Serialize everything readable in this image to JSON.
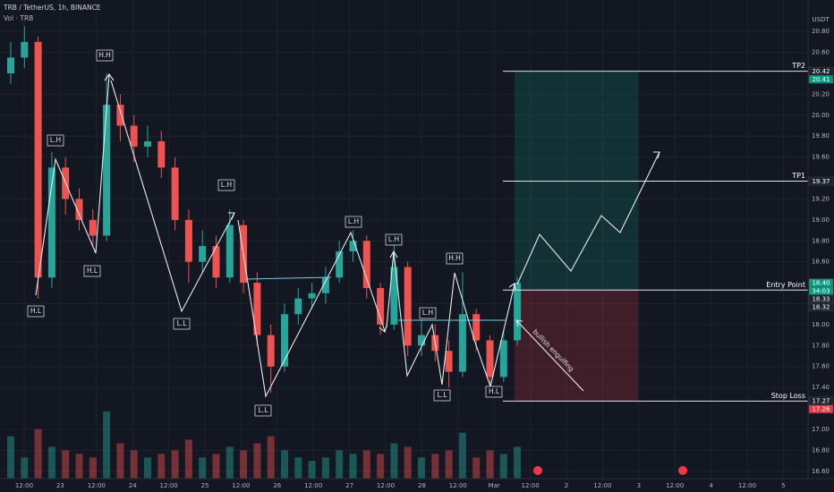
{
  "chart_data": {
    "type": "candlestick",
    "title": "TRB / TetherUS, 1h, BINANCE",
    "subtitle": "Vol · TRB",
    "y_unit": "USDT",
    "ylim": [
      16.53,
      21.1
    ],
    "yticks": [
      {
        "value": 20.8,
        "label": "20.80"
      },
      {
        "value": 20.6,
        "label": "20.60"
      },
      {
        "value": 20.2,
        "label": "20.20"
      },
      {
        "value": 20.0,
        "label": "20.00"
      },
      {
        "value": 19.8,
        "label": "19.80"
      },
      {
        "value": 19.6,
        "label": "19.60"
      },
      {
        "value": 19.2,
        "label": "19.20"
      },
      {
        "value": 19.0,
        "label": "19.00"
      },
      {
        "value": 18.8,
        "label": "18.80"
      },
      {
        "value": 18.6,
        "label": "18.60"
      },
      {
        "value": 18.2,
        "label": "18.20"
      },
      {
        "value": 18.0,
        "label": "18.00"
      },
      {
        "value": 17.8,
        "label": "17.80"
      },
      {
        "value": 17.6,
        "label": "17.60"
      },
      {
        "value": 17.4,
        "label": "17.40"
      },
      {
        "value": 17.0,
        "label": "17.00"
      },
      {
        "value": 16.8,
        "label": "16.80"
      },
      {
        "value": 16.6,
        "label": "16.60"
      }
    ],
    "xticks": [
      "12:00",
      "23",
      "12:00",
      "24",
      "12:00",
      "25",
      "12:00",
      "26",
      "12:00",
      "27",
      "12:00",
      "28",
      "12:00",
      "Mar",
      "12:00",
      "2",
      "12:00",
      "3",
      "12:00",
      "4",
      "12:00",
      "5"
    ],
    "grid": true,
    "up_color": "#26a69a",
    "down_color": "#ef5350",
    "open": [
      20.4,
      20.55,
      20.7,
      18.45,
      19.5,
      19.2,
      19.0,
      18.85,
      20.1,
      19.9,
      19.7,
      19.75,
      19.5,
      19.0,
      18.6,
      18.75,
      18.45,
      18.95,
      18.4,
      17.9,
      17.6,
      18.1,
      18.25,
      18.3,
      18.45,
      18.7,
      18.8,
      18.35,
      18.0,
      18.55,
      17.8,
      17.9,
      17.75,
      17.55,
      18.1,
      17.85,
      17.5,
      17.85
    ],
    "high": [
      20.7,
      20.85,
      20.75,
      19.65,
      19.6,
      19.3,
      19.1,
      20.4,
      20.2,
      20.0,
      19.9,
      19.85,
      19.6,
      19.1,
      18.9,
      18.85,
      19.1,
      19.0,
      18.5,
      18.0,
      18.2,
      18.35,
      18.4,
      18.55,
      18.8,
      18.9,
      18.85,
      18.4,
      18.8,
      18.6,
      18.05,
      18.0,
      17.85,
      18.5,
      18.15,
      17.9,
      17.95,
      18.45
    ],
    "low": [
      20.3,
      20.45,
      18.25,
      18.35,
      19.05,
      18.9,
      18.75,
      18.8,
      19.75,
      19.55,
      19.6,
      19.4,
      18.9,
      18.4,
      18.5,
      18.35,
      18.4,
      18.3,
      17.8,
      17.35,
      17.55,
      18.0,
      18.15,
      18.2,
      18.4,
      18.6,
      18.25,
      17.9,
      17.95,
      17.7,
      17.7,
      17.65,
      17.4,
      17.5,
      17.75,
      17.38,
      17.45,
      17.8
    ],
    "close": [
      20.55,
      20.7,
      18.45,
      19.5,
      19.2,
      19.0,
      18.85,
      20.1,
      19.9,
      19.7,
      19.75,
      19.5,
      19.0,
      18.6,
      18.75,
      18.45,
      18.95,
      18.4,
      17.9,
      17.6,
      18.1,
      18.25,
      18.3,
      18.45,
      18.7,
      18.8,
      18.35,
      18.0,
      18.55,
      17.8,
      17.9,
      17.75,
      17.55,
      18.1,
      17.85,
      17.5,
      17.85,
      18.4
    ],
    "volume": [
      60,
      30,
      70,
      45,
      40,
      35,
      30,
      95,
      50,
      40,
      30,
      35,
      40,
      55,
      30,
      35,
      45,
      40,
      50,
      60,
      40,
      30,
      25,
      30,
      40,
      35,
      40,
      35,
      50,
      45,
      30,
      35,
      40,
      65,
      30,
      40,
      35,
      45
    ],
    "levels": [
      {
        "name": "TP2",
        "value": 20.42
      },
      {
        "name": "TP1",
        "value": 19.37
      },
      {
        "name": "Entry Point",
        "value": 18.33
      },
      {
        "name": "Stop Loss",
        "value": 17.27
      }
    ],
    "price_tags": [
      {
        "value": 20.42,
        "label": "20.42",
        "color": "#1e222d"
      },
      {
        "value": 20.41,
        "label": "20.41",
        "color": "#089981"
      },
      {
        "value": 19.37,
        "label": "19.37",
        "color": "#1e222d"
      },
      {
        "value": 18.4,
        "label": "18.40",
        "color": "#089981"
      },
      {
        "value": 18.33,
        "label": "18.33",
        "color": "#1e222d"
      },
      {
        "value": 18.32,
        "label": "18.32",
        "color": "#1e222d"
      },
      {
        "value": 17.27,
        "label": "17.27",
        "color": "#1e222d"
      },
      {
        "value": 17.26,
        "label": "17.26",
        "color": "#f23645"
      }
    ],
    "countdown": "34:03",
    "annotations": [
      "H.L",
      "L.H",
      "H.H",
      "H.L",
      "L.L",
      "L.H",
      "L.L",
      "L.H",
      "L.H",
      "H.H",
      "L.H",
      "L.L",
      "H.L",
      "bullish engulfing"
    ]
  }
}
